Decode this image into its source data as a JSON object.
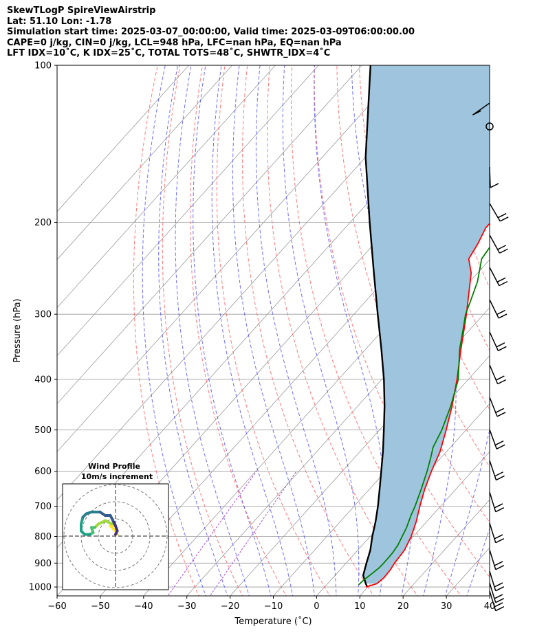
{
  "header": {
    "lines": [
      "SkewTLogP SpireViewAirstrip",
      "Lat: 51.10   Lon: -1.78",
      "Simulation start time: 2025-03-07_00:00:00, Valid time: 2025-03-09T06:00:00.00",
      "CAPE=0 j/kg, CIN=0 j/kg, LCL=948 hPa, LFC=nan hPa, EQ=nan hPa",
      "LFT IDX=10˚C, K IDX=25˚C, TOTAL TOTS=48˚C, SHWTR_IDX=4˚C"
    ]
  },
  "colors": {
    "temperature": "#ff0000",
    "dewpoint": "#008000",
    "parcel": "#000000",
    "fill": "#9fc5de",
    "dry_adiabat": "#ff5a5a",
    "moist_adiabat": "#4a4aff",
    "mixing_ratio": "#9b30d0",
    "isotherm": "#9a9a9a"
  },
  "chart_data": [
    {
      "type": "line",
      "subtype": "skew-t log-p",
      "xlabel": "Temperature (˚C)",
      "ylabel": "Pressure (hPa)",
      "xlim": [
        -60,
        40
      ],
      "ylim": [
        1040,
        100
      ],
      "y_scale": "log",
      "x_ticks": [
        "−60",
        "−50",
        "−40",
        "−30",
        "−20",
        "−10",
        "0",
        "10",
        "20",
        "30",
        "40"
      ],
      "y_ticks": [
        "100",
        "200",
        "300",
        "400",
        "500",
        "600",
        "700",
        "800",
        "900",
        "1000"
      ],
      "grid": true,
      "series": [
        {
          "key": "temperature",
          "points": [
            [
              1000,
              9.5
            ],
            [
              985,
              11.4
            ],
            [
              960,
              11.8
            ],
            [
              925,
              11.6
            ],
            [
              900,
              11.2
            ],
            [
              850,
              10.8
            ],
            [
              800,
              9.5
            ],
            [
              750,
              7.6
            ],
            [
              700,
              5.2
            ],
            [
              650,
              2.8
            ],
            [
              600,
              0.6
            ],
            [
              550,
              -1.5
            ],
            [
              500,
              -4.6
            ],
            [
              450,
              -8.2
            ],
            [
              400,
              -12.6
            ],
            [
              350,
              -18
            ],
            [
              300,
              -24
            ],
            [
              250,
              -31.5
            ],
            [
              235,
              -35
            ],
            [
              220,
              -36
            ],
            [
              205,
              -37.5
            ],
            [
              185,
              -37.5
            ],
            [
              165,
              -38.5
            ],
            [
              145,
              -41
            ],
            [
              140,
              -41.7
            ],
            [
              133,
              -44
            ],
            [
              120,
              -46.5
            ],
            [
              110,
              -49.5
            ],
            [
              100,
              -53
            ]
          ]
        },
        {
          "key": "dewpoint",
          "points": [
            [
              990,
              7.4
            ],
            [
              970,
              7.6
            ],
            [
              940,
              8.2
            ],
            [
              920,
              8.6
            ],
            [
              900,
              8.7
            ],
            [
              860,
              8.6
            ],
            [
              830,
              8.2
            ],
            [
              800,
              7.4
            ],
            [
              770,
              6.6
            ],
            [
              730,
              5.1
            ],
            [
              700,
              4.1
            ],
            [
              650,
              2.0
            ],
            [
              600,
              -0.4
            ],
            [
              560,
              -2.7
            ],
            [
              540,
              -4.0
            ],
            [
              500,
              -5.6
            ],
            [
              450,
              -8.5
            ],
            [
              400,
              -12.3
            ],
            [
              350,
              -18.3
            ],
            [
              320,
              -21.7
            ],
            [
              300,
              -24.2
            ],
            [
              285,
              -25.6
            ],
            [
              260,
              -28.2
            ],
            [
              235,
              -32.0
            ],
            [
              220,
              -32.7
            ],
            [
              205,
              -33.3
            ],
            [
              190,
              -34.5
            ],
            [
              175,
              -37.0
            ],
            [
              158,
              -39.0
            ],
            [
              140,
              -44
            ],
            [
              120,
              -52
            ],
            [
              100,
              -62
            ]
          ]
        },
        {
          "key": "parcel",
          "points": [
            [
              1000,
              9.9
            ],
            [
              985,
              8.8
            ],
            [
              950,
              6.5
            ],
            [
              900,
              4.7
            ],
            [
              850,
              2.9
            ],
            [
              800,
              0.5
            ],
            [
              750,
              -1.8
            ],
            [
              700,
              -4.5
            ],
            [
              650,
              -7.6
            ],
            [
              600,
              -11
            ],
            [
              550,
              -14.7
            ],
            [
              500,
              -19
            ],
            [
              450,
              -23.8
            ],
            [
              400,
              -29.5
            ],
            [
              350,
              -36.4
            ],
            [
              300,
              -44.5
            ],
            [
              250,
              -54
            ],
            [
              200,
              -65.5
            ],
            [
              150,
              -80
            ],
            [
              100,
              -98
            ]
          ]
        }
      ],
      "wind_barbs": {
        "max_speed_kt": 50
      }
    },
    {
      "type": "scatter",
      "subtype": "wind-hodograph",
      "title": "Wind Profile",
      "subtitle": "10m/s increment",
      "ring_increment": 10,
      "colormap": "viridis",
      "points": [
        [
          0,
          -1
        ],
        [
          1,
          -3
        ],
        [
          0,
          -6
        ],
        [
          -1,
          -8
        ],
        [
          -3,
          -12
        ],
        [
          -6,
          -12
        ],
        [
          -9,
          -14
        ],
        [
          -14,
          -14
        ],
        [
          -17,
          -13
        ],
        [
          -19,
          -11
        ],
        [
          -20,
          -7
        ],
        [
          -20,
          -3
        ],
        [
          -18,
          -1
        ],
        [
          -15,
          -1
        ],
        [
          -13,
          -2
        ],
        [
          -14,
          -5
        ],
        [
          -12,
          -5
        ],
        [
          -10,
          -7
        ],
        [
          -6,
          -9
        ],
        [
          -2,
          -7
        ],
        [
          0,
          -6
        ],
        [
          -3,
          -6
        ],
        [
          0,
          -3
        ],
        [
          1,
          -1
        ]
      ]
    }
  ]
}
